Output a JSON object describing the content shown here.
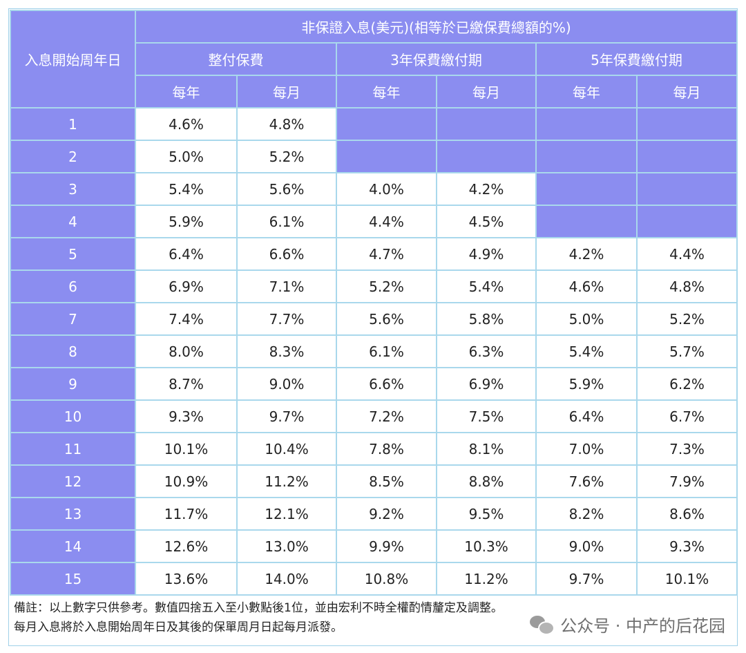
{
  "table": {
    "row_header_title": "入息開始周年日",
    "top_header": "非保證入息(美元)(相等於已繳保費總額的%)",
    "groups": [
      "整付保費",
      "3年保費繳付期",
      "5年保費繳付期"
    ],
    "subheaders": [
      "每年",
      "每月",
      "每年",
      "每月",
      "每年",
      "每月"
    ],
    "rows": [
      {
        "year": "1",
        "cells": [
          "4.6%",
          "4.8%",
          "",
          "",
          "",
          ""
        ]
      },
      {
        "year": "2",
        "cells": [
          "5.0%",
          "5.2%",
          "",
          "",
          "",
          ""
        ]
      },
      {
        "year": "3",
        "cells": [
          "5.4%",
          "5.6%",
          "4.0%",
          "4.2%",
          "",
          ""
        ]
      },
      {
        "year": "4",
        "cells": [
          "5.9%",
          "6.1%",
          "4.4%",
          "4.5%",
          "",
          ""
        ]
      },
      {
        "year": "5",
        "cells": [
          "6.4%",
          "6.6%",
          "4.7%",
          "4.9%",
          "4.2%",
          "4.4%"
        ]
      },
      {
        "year": "6",
        "cells": [
          "6.9%",
          "7.1%",
          "5.2%",
          "5.4%",
          "4.6%",
          "4.8%"
        ]
      },
      {
        "year": "7",
        "cells": [
          "7.4%",
          "7.7%",
          "5.6%",
          "5.8%",
          "5.0%",
          "5.2%"
        ]
      },
      {
        "year": "8",
        "cells": [
          "8.0%",
          "8.3%",
          "6.1%",
          "6.3%",
          "5.4%",
          "5.7%"
        ]
      },
      {
        "year": "9",
        "cells": [
          "8.7%",
          "9.0%",
          "6.6%",
          "6.9%",
          "5.9%",
          "6.2%"
        ]
      },
      {
        "year": "10",
        "cells": [
          "9.3%",
          "9.7%",
          "7.2%",
          "7.5%",
          "6.4%",
          "6.7%"
        ]
      },
      {
        "year": "11",
        "cells": [
          "10.1%",
          "10.4%",
          "7.8%",
          "8.1%",
          "7.0%",
          "7.3%"
        ]
      },
      {
        "year": "12",
        "cells": [
          "10.9%",
          "11.2%",
          "8.5%",
          "8.8%",
          "7.6%",
          "7.9%"
        ]
      },
      {
        "year": "13",
        "cells": [
          "11.7%",
          "12.1%",
          "9.2%",
          "9.5%",
          "8.2%",
          "8.6%"
        ]
      },
      {
        "year": "14",
        "cells": [
          "12.6%",
          "13.0%",
          "9.9%",
          "10.3%",
          "9.0%",
          "9.3%"
        ]
      },
      {
        "year": "15",
        "cells": [
          "13.6%",
          "14.0%",
          "10.8%",
          "11.2%",
          "9.7%",
          "10.1%"
        ]
      }
    ]
  },
  "notes": [
    "備註：以上數字只供參考。數值四捨五入至小數點後1位，並由宏利不時全權酌情釐定及調整。",
    "每月入息將於入息開始周年日及其後的保單周月日起每月派發。"
  ],
  "watermark": {
    "text": "公众号 · 中产的后花园",
    "icon": "wechat-icon"
  },
  "colors": {
    "header_fill": "#8b8df0",
    "border": "#a9d8ec"
  }
}
